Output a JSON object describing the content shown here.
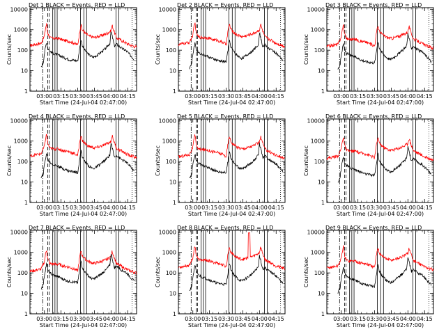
{
  "colors": {
    "events": "#000000",
    "lld": "#ff0000",
    "background": "#ffffff"
  },
  "chart_data": {
    "type": "line",
    "ylabel": "Counts/sec",
    "xlabel": "Start Time (24-Jul-04 02:47:00)",
    "x_tick_labels": [
      "03:00",
      "03:15",
      "03:30",
      "03:45",
      "04:00",
      "04:15"
    ],
    "x_tick_minutes": [
      13,
      28,
      43,
      58,
      73,
      88
    ],
    "xlim_minutes": [
      0,
      96
    ],
    "y_scale": "log",
    "ylim": [
      1,
      12000
    ],
    "y_tick_labels": [
      "1",
      "10",
      "100",
      "1000",
      "10000"
    ],
    "y_tick_values": [
      1,
      10,
      100,
      1000,
      10000
    ],
    "legend_text": "BLACK = Events, RED = LLD",
    "vertical_markers": {
      "dash_dot_minutes": [
        11.5
      ],
      "dashed_minutes": [
        16,
        17.3
      ],
      "solid_minutes": [
        20.5,
        22.5,
        24.5,
        45.5,
        48.5,
        51,
        77.5,
        80
      ],
      "dotted_minutes": [
        92
      ]
    },
    "shape_summary": {
      "events_start_minute": 10,
      "events_end_minute": 94,
      "lld_start_minute": 0,
      "lld_end_minute": 96,
      "events_peak_value": 800,
      "lld_peak_value": 2000
    },
    "panels": [
      {
        "detector": "Det 1",
        "title": "Det 1  BLACK = Events, RED = LLD",
        "lld_scale": 1.0,
        "evt_scale": 1.0,
        "lld_spike": false
      },
      {
        "detector": "Det 2",
        "title": "Det 2  BLACK = Events, RED = LLD",
        "lld_scale": 1.1,
        "evt_scale": 0.9,
        "lld_spike": false
      },
      {
        "detector": "Det 3",
        "title": "Det 3  BLACK = Events, RED = LLD",
        "lld_scale": 0.9,
        "evt_scale": 0.8,
        "lld_spike": false
      },
      {
        "detector": "Det 4",
        "title": "Det 4  BLACK = Events, RED = LLD",
        "lld_scale": 1.1,
        "evt_scale": 1.0,
        "lld_spike": false
      },
      {
        "detector": "Det 5",
        "title": "Det 5  BLACK = Events, RED = LLD",
        "lld_scale": 1.0,
        "evt_scale": 0.95,
        "lld_spike": false
      },
      {
        "detector": "Det 6",
        "title": "Det 6  BLACK = Events, RED = LLD",
        "lld_scale": 0.85,
        "evt_scale": 0.7,
        "lld_spike": false
      },
      {
        "detector": "Det 7",
        "title": "Det 7  BLACK = Events, RED = LLD",
        "lld_scale": 0.7,
        "evt_scale": 1.1,
        "lld_spike": false
      },
      {
        "detector": "Det 8",
        "title": "Det 8  BLACK = Events, RED = LLD",
        "lld_scale": 1.1,
        "evt_scale": 0.9,
        "lld_spike": true
      },
      {
        "detector": "Det 9",
        "title": "Det 9  BLACK = Events, RED = LLD",
        "lld_scale": 1.0,
        "evt_scale": 0.75,
        "lld_spike": false
      }
    ]
  }
}
